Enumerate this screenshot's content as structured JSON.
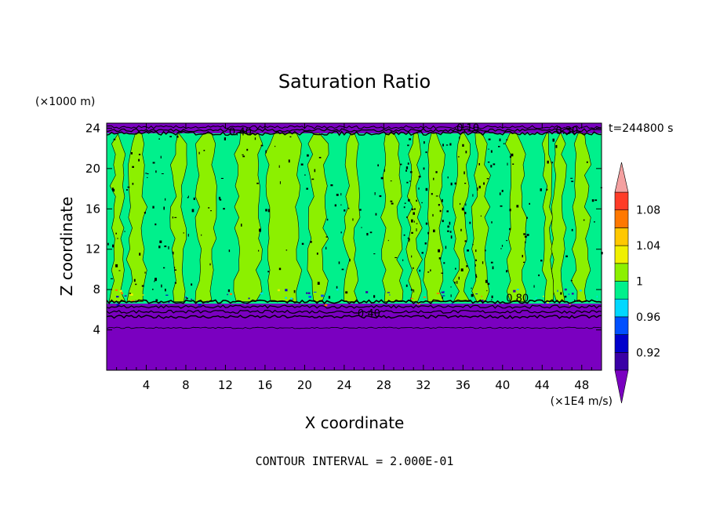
{
  "chart_data": {
    "type": "contour",
    "title": "Saturation Ratio",
    "xlabel": "X coordinate",
    "ylabel": "Z coordinate",
    "x_unit": "(×1E4 m/s)",
    "y_unit": "(×1000 m)",
    "time_label": "t=244800 s",
    "footer": "CONTOUR INTERVAL = 2.000E-01",
    "xlim": [
      0,
      50
    ],
    "ylim": [
      0,
      24.5
    ],
    "x_ticks": [
      "4",
      "8",
      "12",
      "16",
      "20",
      "24",
      "28",
      "32",
      "36",
      "40",
      "44",
      "48"
    ],
    "y_ticks": [
      "4",
      "8",
      "12",
      "16",
      "20",
      "24"
    ],
    "colorbar": {
      "levels": [
        0.9,
        0.92,
        0.94,
        0.96,
        0.98,
        1.0,
        1.02,
        1.04,
        1.06,
        1.08,
        1.1
      ],
      "labels": [
        "0.92",
        "0.96",
        "1",
        "1.04",
        "1.08"
      ],
      "colors": [
        "#3a00a6",
        "#0000cc",
        "#0050ff",
        "#00d8ff",
        "#00f08c",
        "#8cf000",
        "#f0f000",
        "#ffc800",
        "#ff7800",
        "#ff3c28"
      ],
      "below_color": "#7a00c0",
      "above_color": "#f4a0a0"
    },
    "contour_labels": [
      {
        "text": "0.40",
        "x": 26.5,
        "z": 5.3
      },
      {
        "text": "0.80",
        "x": 41.5,
        "z": 6.8
      },
      {
        "text": "0.40",
        "x": 13.5,
        "z": 23.3
      },
      {
        "text": "0.10",
        "x": 36.5,
        "z": 23.7
      },
      {
        "text": "0.30",
        "x": 46.5,
        "z": 23.4
      }
    ],
    "bands": [
      {
        "z0": 0,
        "z1": 6.6,
        "value": 0.6
      },
      {
        "z0": 6.6,
        "z1": 23.5,
        "value": "alternating 0.99 / 1.01 vertical plumes"
      },
      {
        "z0": 23.5,
        "z1": 24.5,
        "value": 0.2
      }
    ]
  }
}
